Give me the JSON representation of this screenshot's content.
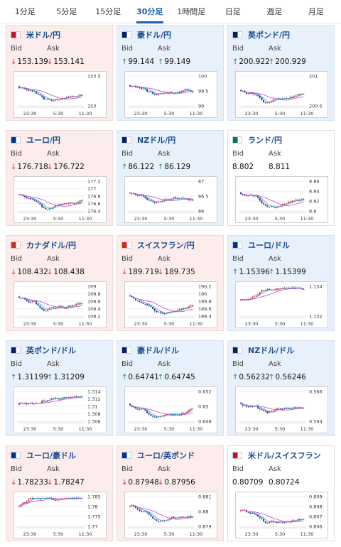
{
  "tabs": [
    "1分足",
    "5分足",
    "15分足",
    "30分足",
    "1時間足",
    "日足",
    "週足",
    "月足"
  ],
  "active_tab": 3,
  "bid_label": "Bid",
  "ask_label": "Ask",
  "cards": [
    {
      "pair": "米ドル/円",
      "bid": "153.139",
      "ask": "153.141",
      "direction": "down",
      "flag_color": "#c8102e",
      "y_ticks": [
        "153.5",
        "153"
      ],
      "x_ticks": [
        "23:30",
        "5:30",
        "11:30"
      ]
    },
    {
      "pair": "豪ドル/円",
      "bid": "99.144",
      "ask": "99.149",
      "direction": "up",
      "flag_color": "#012169",
      "y_ticks": [
        "100",
        "99.5",
        "99"
      ],
      "x_ticks": [
        "23:30",
        "5:30",
        "11:30"
      ]
    },
    {
      "pair": "英ポンド/円",
      "bid": "200.922",
      "ask": "200.929",
      "direction": "up",
      "flag_color": "#012169",
      "y_ticks": [
        "201",
        "200.5"
      ],
      "x_ticks": [
        "23:30",
        "5:30",
        "11:30"
      ]
    },
    {
      "pair": "ユーロ/円",
      "bid": "176.718",
      "ask": "176.722",
      "direction": "down",
      "flag_color": "#003399",
      "y_ticks": [
        "177.2",
        "177",
        "176.8",
        "176.6",
        "176.4"
      ],
      "x_ticks": [
        "23:30",
        "5:30",
        "11:30"
      ]
    },
    {
      "pair": "NZドル/円",
      "bid": "86.122",
      "ask": "86.129",
      "direction": "up",
      "flag_color": "#012169",
      "y_ticks": [
        "87",
        "86.5",
        "86"
      ],
      "x_ticks": [
        "23:30",
        "5:30",
        "11:30"
      ]
    },
    {
      "pair": "ランド/円",
      "bid": "8.802",
      "ask": "8.811",
      "direction": "flat",
      "flag_color": "#007a4d",
      "y_ticks": [
        "8.86",
        "8.84",
        "8.82",
        "8.8"
      ],
      "x_ticks": [
        "23:30",
        "5:30",
        "11:30"
      ]
    },
    {
      "pair": "カナダドル/円",
      "bid": "108.432",
      "ask": "108.438",
      "direction": "down",
      "flag_color": "#d52b1e",
      "y_ticks": [
        "109",
        "108.8",
        "108.6",
        "108.4",
        "108.2"
      ],
      "x_ticks": [
        "23:30",
        "5:30",
        "11:30"
      ]
    },
    {
      "pair": "スイスフラン/円",
      "bid": "189.719",
      "ask": "189.735",
      "direction": "down",
      "flag_color": "#d52b1e",
      "y_ticks": [
        "190.2",
        "190",
        "189.8",
        "189.6",
        "189.4"
      ],
      "x_ticks": [
        "23:30",
        "5:30",
        "11:30"
      ]
    },
    {
      "pair": "ユーロ/ドル",
      "bid": "1.15396",
      "ask": "1.15399",
      "direction": "up",
      "flag_color": "#003399",
      "y_ticks": [
        "1.154",
        "1.152"
      ],
      "x_ticks": [
        "23:30",
        "5:30",
        "11:30"
      ]
    },
    {
      "pair": "英ポンド/ドル",
      "bid": "1.31199",
      "ask": "1.31209",
      "direction": "up",
      "flag_color": "#012169",
      "y_ticks": [
        "1.314",
        "1.312",
        "1.31",
        "1.308",
        "1.306"
      ],
      "x_ticks": [
        "23:30",
        "5:30",
        "11:30"
      ]
    },
    {
      "pair": "豪ドル/ドル",
      "bid": "0.64741",
      "ask": "0.64745",
      "direction": "up",
      "flag_color": "#012169",
      "y_ticks": [
        "0.652",
        "0.65",
        "0.648"
      ],
      "x_ticks": [
        "23:30",
        "5:30",
        "11:30"
      ]
    },
    {
      "pair": "NZドル/ドル",
      "bid": "0.56232",
      "ask": "0.56246",
      "direction": "up",
      "flag_color": "#012169",
      "y_ticks": [
        "0.566",
        "0.564"
      ],
      "x_ticks": [
        "23:30",
        "5:30",
        "11:30"
      ]
    },
    {
      "pair": "ユーロ/豪ドル",
      "bid": "1.78233",
      "ask": "1.78247",
      "direction": "down",
      "flag_color": "#003399",
      "y_ticks": [
        "1.785",
        "1.78",
        "1.775",
        "1.77"
      ],
      "x_ticks": [
        "23:30",
        "5:30",
        "11:30"
      ]
    },
    {
      "pair": "ユーロ/英ポンド",
      "bid": "0.87948",
      "ask": "0.87956",
      "direction": "down",
      "flag_color": "#003399",
      "y_ticks": [
        "0.881",
        "0.88",
        "0.879"
      ],
      "x_ticks": [
        "23:30",
        "5:30",
        "11:30"
      ]
    },
    {
      "pair": "米ドル/スイスフラン",
      "bid": "0.80709",
      "ask": "0.80724",
      "direction": "flat",
      "flag_color": "#c8102e",
      "y_ticks": [
        "0.809",
        "0.808",
        "0.807",
        "0.806"
      ],
      "x_ticks": [
        "23:30",
        "5:30",
        "11:30"
      ]
    }
  ]
}
